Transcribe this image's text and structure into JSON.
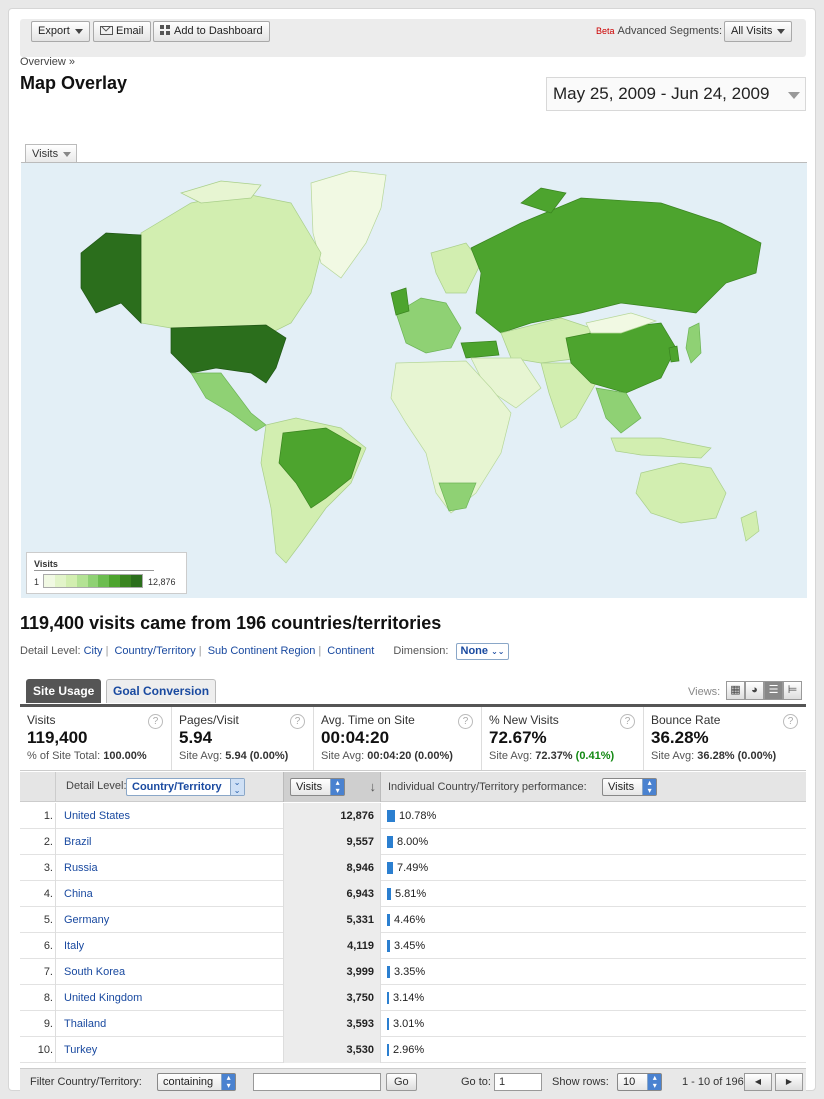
{
  "toolbar": {
    "export_label": "Export",
    "email_label": "Email",
    "dashboard_label": "Add to Dashboard",
    "beta_label": "Beta",
    "segments_label": "Advanced Segments:",
    "segment_value": "All Visits"
  },
  "breadcrumb": "Overview »",
  "page_title": "Map Overlay",
  "date_range": "May 25, 2009 - Jun 24, 2009",
  "map": {
    "metric_tab": "Visits",
    "legend_title": "Visits",
    "legend_min": "1",
    "legend_max": "12,876",
    "colors": {
      "water": "#e3eff6",
      "lowest": "#f1f9e3",
      "low": "#d2eeb0",
      "mid": "#8fd174",
      "high": "#4da42e",
      "highest": "#2b6e1c"
    }
  },
  "summary": "119,400 visits came from 196 countries/territories",
  "detail": {
    "label": "Detail Level:",
    "links": [
      "City",
      "Country/Territory",
      "Sub Continent Region",
      "Continent"
    ],
    "dimension_label": "Dimension:",
    "dimension_value": "None"
  },
  "tabs": [
    "Site Usage",
    "Goal Conversion"
  ],
  "views_label": "Views:",
  "metrics": [
    {
      "label": "Visits",
      "value": "119,400",
      "sub_prefix": "% of Site Total:",
      "sub_value": "100.00%",
      "sub_delta": ""
    },
    {
      "label": "Pages/Visit",
      "value": "5.94",
      "sub_prefix": "Site Avg:",
      "sub_value": "5.94 (0.00%)",
      "sub_delta": ""
    },
    {
      "label": "Avg. Time on Site",
      "value": "00:04:20",
      "sub_prefix": "Site Avg:",
      "sub_value": "00:04:20 (0.00%)",
      "sub_delta": ""
    },
    {
      "label": "% New Visits",
      "value": "72.67%",
      "sub_prefix": "Site Avg:",
      "sub_value": "72.37%",
      "sub_delta": "(0.41%)"
    },
    {
      "label": "Bounce Rate",
      "value": "36.28%",
      "sub_prefix": "Site Avg:",
      "sub_value": "36.28% (0.00%)",
      "sub_delta": ""
    }
  ],
  "table": {
    "detail_label": "Detail Level:",
    "detail_value": "Country/Territory",
    "sort_column": "Visits",
    "perf_label": "Individual Country/Territory performance:",
    "perf_value": "Visits",
    "rows": [
      {
        "num": "1.",
        "country": "United States",
        "visits": "12,876",
        "pct": "10.78%",
        "share": 10.78
      },
      {
        "num": "2.",
        "country": "Brazil",
        "visits": "9,557",
        "pct": "8.00%",
        "share": 8.0
      },
      {
        "num": "3.",
        "country": "Russia",
        "visits": "8,946",
        "pct": "7.49%",
        "share": 7.49
      },
      {
        "num": "4.",
        "country": "China",
        "visits": "6,943",
        "pct": "5.81%",
        "share": 5.81
      },
      {
        "num": "5.",
        "country": "Germany",
        "visits": "5,331",
        "pct": "4.46%",
        "share": 4.46
      },
      {
        "num": "6.",
        "country": "Italy",
        "visits": "4,119",
        "pct": "3.45%",
        "share": 3.45
      },
      {
        "num": "7.",
        "country": "South Korea",
        "visits": "3,999",
        "pct": "3.35%",
        "share": 3.35
      },
      {
        "num": "8.",
        "country": "United Kingdom",
        "visits": "3,750",
        "pct": "3.14%",
        "share": 3.14
      },
      {
        "num": "9.",
        "country": "Thailand",
        "visits": "3,593",
        "pct": "3.01%",
        "share": 3.01
      },
      {
        "num": "10.",
        "country": "Turkey",
        "visits": "3,530",
        "pct": "2.96%",
        "share": 2.96
      }
    ]
  },
  "footer": {
    "filter_label": "Filter Country/Territory:",
    "filter_mode": "containing",
    "filter_value": "",
    "go_label": "Go",
    "goto_label": "Go to:",
    "goto_value": "1",
    "show_rows_label": "Show rows:",
    "show_rows_value": "10",
    "range_text": "1 - 10 of 196"
  }
}
